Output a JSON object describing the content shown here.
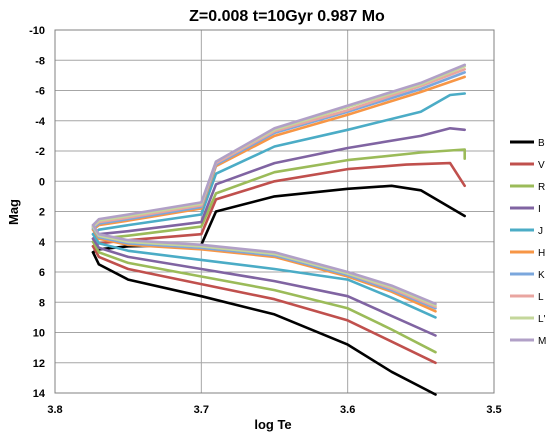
{
  "chart_data": {
    "type": "line",
    "title": "Z=0.008   t=10Gyr   0.987 Mo",
    "xlabel": "log Te",
    "ylabel": "Mag",
    "xlim": [
      3.8,
      3.5
    ],
    "ylim": [
      14,
      -10
    ],
    "x_ticks": [
      "3.8",
      "3.7",
      "3.6",
      "3.5"
    ],
    "x_tick_values": [
      3.8,
      3.7,
      3.6,
      3.5
    ],
    "y_ticks": [
      "-10",
      "-8",
      "-6",
      "-4",
      "-2",
      "0",
      "2",
      "4",
      "6",
      "8",
      "10",
      "12",
      "14"
    ],
    "y_tick_values": [
      -10,
      -8,
      -6,
      -4,
      -2,
      0,
      2,
      4,
      6,
      8,
      10,
      12,
      14
    ],
    "grid": true,
    "legend_position": "right",
    "series": [
      {
        "name": "B",
        "color": "#000000",
        "lower": [
          [
            3.774,
            4.7
          ],
          [
            3.77,
            5.5
          ],
          [
            3.75,
            6.5
          ],
          [
            3.7,
            7.6
          ],
          [
            3.65,
            8.8
          ],
          [
            3.6,
            10.8
          ],
          [
            3.57,
            12.6
          ],
          [
            3.54,
            14.1
          ]
        ],
        "upper": [
          [
            3.774,
            4.7
          ],
          [
            3.77,
            4.5
          ],
          [
            3.75,
            4.3
          ],
          [
            3.7,
            4.2
          ],
          [
            3.69,
            2.0
          ],
          [
            3.65,
            1.0
          ],
          [
            3.6,
            0.5
          ],
          [
            3.57,
            0.3
          ],
          [
            3.55,
            0.6
          ],
          [
            3.52,
            2.3
          ]
        ]
      },
      {
        "name": "V",
        "color": "#c0504d",
        "lower": [
          [
            3.774,
            4.3
          ],
          [
            3.77,
            5.0
          ],
          [
            3.75,
            5.8
          ],
          [
            3.7,
            6.8
          ],
          [
            3.65,
            7.8
          ],
          [
            3.6,
            9.2
          ],
          [
            3.57,
            10.6
          ],
          [
            3.54,
            12.0
          ]
        ],
        "upper": [
          [
            3.774,
            4.3
          ],
          [
            3.77,
            4.1
          ],
          [
            3.75,
            3.9
          ],
          [
            3.7,
            3.5
          ],
          [
            3.69,
            1.2
          ],
          [
            3.65,
            0.0
          ],
          [
            3.6,
            -0.8
          ],
          [
            3.56,
            -1.1
          ],
          [
            3.53,
            -1.2
          ],
          [
            3.52,
            0.3
          ]
        ]
      },
      {
        "name": "R",
        "color": "#9bbb59",
        "lower": [
          [
            3.774,
            4.0
          ],
          [
            3.77,
            4.7
          ],
          [
            3.75,
            5.4
          ],
          [
            3.7,
            6.3
          ],
          [
            3.65,
            7.2
          ],
          [
            3.6,
            8.4
          ],
          [
            3.57,
            9.8
          ],
          [
            3.54,
            11.3
          ]
        ],
        "upper": [
          [
            3.774,
            4.0
          ],
          [
            3.77,
            3.8
          ],
          [
            3.75,
            3.6
          ],
          [
            3.7,
            3.0
          ],
          [
            3.69,
            0.8
          ],
          [
            3.65,
            -0.6
          ],
          [
            3.6,
            -1.4
          ],
          [
            3.55,
            -1.9
          ],
          [
            3.52,
            -2.1
          ],
          [
            3.52,
            -1.5
          ]
        ]
      },
      {
        "name": "I",
        "color": "#8064a2",
        "lower": [
          [
            3.774,
            3.8
          ],
          [
            3.77,
            4.4
          ],
          [
            3.75,
            5.0
          ],
          [
            3.7,
            5.8
          ],
          [
            3.65,
            6.6
          ],
          [
            3.6,
            7.6
          ],
          [
            3.57,
            8.9
          ],
          [
            3.54,
            10.2
          ]
        ],
        "upper": [
          [
            3.774,
            3.8
          ],
          [
            3.77,
            3.5
          ],
          [
            3.75,
            3.3
          ],
          [
            3.7,
            2.7
          ],
          [
            3.69,
            0.2
          ],
          [
            3.65,
            -1.2
          ],
          [
            3.6,
            -2.2
          ],
          [
            3.55,
            -3.0
          ],
          [
            3.53,
            -3.5
          ],
          [
            3.52,
            -3.4
          ]
        ]
      },
      {
        "name": "J",
        "color": "#4bacc6",
        "lower": [
          [
            3.774,
            3.5
          ],
          [
            3.77,
            4.1
          ],
          [
            3.75,
            4.6
          ],
          [
            3.7,
            5.2
          ],
          [
            3.65,
            5.8
          ],
          [
            3.6,
            6.5
          ],
          [
            3.57,
            7.7
          ],
          [
            3.54,
            9.0
          ]
        ],
        "upper": [
          [
            3.774,
            3.5
          ],
          [
            3.77,
            3.2
          ],
          [
            3.75,
            2.9
          ],
          [
            3.7,
            2.2
          ],
          [
            3.69,
            -0.5
          ],
          [
            3.65,
            -2.3
          ],
          [
            3.6,
            -3.4
          ],
          [
            3.55,
            -4.6
          ],
          [
            3.53,
            -5.7
          ],
          [
            3.52,
            -5.8
          ]
        ]
      },
      {
        "name": "H",
        "color": "#f79646",
        "lower": [
          [
            3.774,
            3.2
          ],
          [
            3.77,
            3.8
          ],
          [
            3.75,
            4.2
          ],
          [
            3.7,
            4.5
          ],
          [
            3.65,
            5.0
          ],
          [
            3.6,
            6.3
          ],
          [
            3.57,
            7.3
          ],
          [
            3.54,
            8.6
          ]
        ],
        "upper": [
          [
            3.774,
            3.2
          ],
          [
            3.77,
            2.9
          ],
          [
            3.75,
            2.6
          ],
          [
            3.7,
            1.8
          ],
          [
            3.69,
            -1.0
          ],
          [
            3.65,
            -3.0
          ],
          [
            3.6,
            -4.4
          ],
          [
            3.55,
            -5.9
          ],
          [
            3.52,
            -6.9
          ]
        ]
      },
      {
        "name": "K",
        "color": "#7ba7dd",
        "lower": [
          [
            3.774,
            3.1
          ],
          [
            3.77,
            3.7
          ],
          [
            3.75,
            4.1
          ],
          [
            3.7,
            4.4
          ],
          [
            3.65,
            4.9
          ],
          [
            3.6,
            6.2
          ],
          [
            3.57,
            7.2
          ],
          [
            3.54,
            8.4
          ]
        ],
        "upper": [
          [
            3.774,
            3.1
          ],
          [
            3.77,
            2.8
          ],
          [
            3.75,
            2.5
          ],
          [
            3.7,
            1.7
          ],
          [
            3.69,
            -1.1
          ],
          [
            3.65,
            -3.2
          ],
          [
            3.6,
            -4.6
          ],
          [
            3.55,
            -6.1
          ],
          [
            3.52,
            -7.2
          ]
        ]
      },
      {
        "name": "L",
        "color": "#e9a5a0",
        "lower": [
          [
            3.774,
            3.0
          ],
          [
            3.77,
            3.6
          ],
          [
            3.75,
            4.0
          ],
          [
            3.7,
            4.3
          ],
          [
            3.65,
            4.8
          ],
          [
            3.6,
            6.1
          ],
          [
            3.57,
            7.1
          ],
          [
            3.54,
            8.3
          ]
        ],
        "upper": [
          [
            3.774,
            3.0
          ],
          [
            3.77,
            2.7
          ],
          [
            3.75,
            2.4
          ],
          [
            3.7,
            1.6
          ],
          [
            3.69,
            -1.2
          ],
          [
            3.65,
            -3.3
          ],
          [
            3.6,
            -4.7
          ],
          [
            3.55,
            -6.3
          ],
          [
            3.52,
            -7.4
          ]
        ]
      },
      {
        "name": "L'",
        "color": "#c4d79b",
        "lower": [
          [
            3.774,
            3.0
          ],
          [
            3.77,
            3.6
          ],
          [
            3.75,
            4.0
          ],
          [
            3.7,
            4.3
          ],
          [
            3.65,
            4.8
          ],
          [
            3.6,
            6.1
          ],
          [
            3.57,
            7.0
          ],
          [
            3.54,
            8.2
          ]
        ],
        "upper": [
          [
            3.774,
            3.0
          ],
          [
            3.77,
            2.6
          ],
          [
            3.75,
            2.3
          ],
          [
            3.7,
            1.5
          ],
          [
            3.69,
            -1.3
          ],
          [
            3.65,
            -3.4
          ],
          [
            3.6,
            -4.9
          ],
          [
            3.55,
            -6.4
          ],
          [
            3.52,
            -7.6
          ]
        ]
      },
      {
        "name": "M",
        "color": "#b1a0c7",
        "lower": [
          [
            3.774,
            2.9
          ],
          [
            3.77,
            3.5
          ],
          [
            3.75,
            3.9
          ],
          [
            3.7,
            4.2
          ],
          [
            3.65,
            4.7
          ],
          [
            3.6,
            6.0
          ],
          [
            3.57,
            6.9
          ],
          [
            3.54,
            8.1
          ]
        ],
        "upper": [
          [
            3.774,
            2.9
          ],
          [
            3.77,
            2.5
          ],
          [
            3.75,
            2.2
          ],
          [
            3.7,
            1.4
          ],
          [
            3.69,
            -1.3
          ],
          [
            3.65,
            -3.5
          ],
          [
            3.6,
            -5.0
          ],
          [
            3.55,
            -6.5
          ],
          [
            3.52,
            -7.7
          ]
        ]
      }
    ]
  }
}
